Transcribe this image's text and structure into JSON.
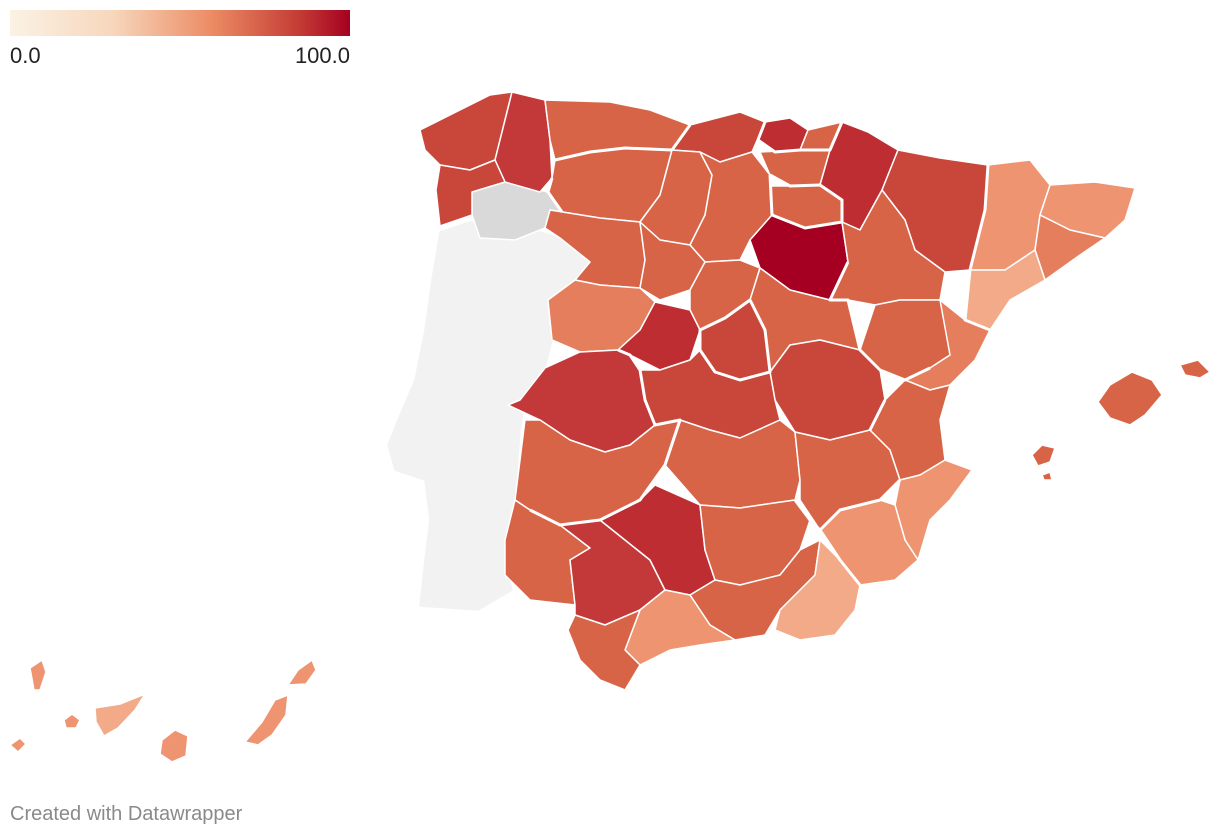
{
  "legend": {
    "min_label": "0.0",
    "max_label": "100.0",
    "color_stops": [
      "#fbf2e4",
      "#f7d7bd",
      "#eb8a62",
      "#c43c35",
      "#a50021"
    ]
  },
  "credit": "Created with Datawrapper",
  "colors": {
    "border": "#ffffff",
    "no_data": "#f2f2f2",
    "missing_region": "#d9d9d9",
    "highest": "#a50021",
    "high": "#bd2d31",
    "mid_high": "#c9463a",
    "mid": "#d86448",
    "mid_low": "#e57e5c",
    "low": "#ee9470",
    "lowest": "#f3aa88"
  }
}
